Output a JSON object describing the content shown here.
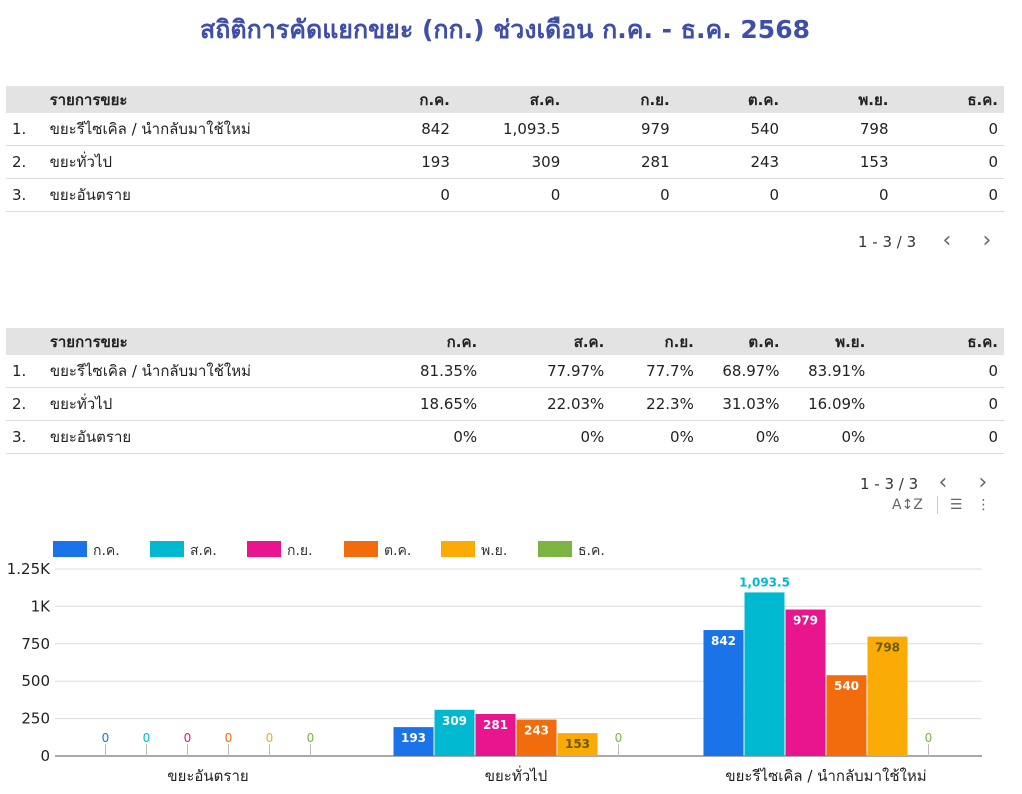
{
  "title": "สถิติการคัดแยกขยะ (กก.) ช่วงเดือน ก.ค. - ธ.ค. 2568",
  "table1": {
    "header": [
      "รายการขยะ",
      "ก.ค.",
      "ส.ค.",
      "ก.ย.",
      "ต.ค.",
      "พ.ย.",
      "ธ.ค."
    ],
    "rows": [
      {
        "idx": "1.",
        "label": "ขยะรีไซเคิล / นำกลับมาใช้ใหม่",
        "values": [
          "842",
          "1,093.5",
          "979",
          "540",
          "798",
          "0"
        ]
      },
      {
        "idx": "2.",
        "label": "ขยะทั่วไป",
        "values": [
          "193",
          "309",
          "281",
          "243",
          "153",
          "0"
        ]
      },
      {
        "idx": "3.",
        "label": "ขยะอันตราย",
        "values": [
          "0",
          "0",
          "0",
          "0",
          "0",
          "0"
        ]
      }
    ],
    "pager": "1 - 3 / 3"
  },
  "table2": {
    "header": [
      "รายการขยะ",
      "ก.ค.",
      "ส.ค.",
      "ก.ย.",
      "ต.ค.",
      "พ.ย.",
      "ธ.ค."
    ],
    "rows": [
      {
        "idx": "1.",
        "label": "ขยะรีไซเคิล / นำกลับมาใช้ใหม่",
        "values": [
          "81.35%",
          "77.97%",
          "77.7%",
          "68.97%",
          "83.91%",
          "0"
        ]
      },
      {
        "idx": "2.",
        "label": "ขยะทั่วไป",
        "values": [
          "18.65%",
          "22.03%",
          "22.3%",
          "31.03%",
          "16.09%",
          "0"
        ]
      },
      {
        "idx": "3.",
        "label": "ขยะอันตราย",
        "values": [
          "0%",
          "0%",
          "0%",
          "0%",
          "0%",
          "0"
        ]
      }
    ],
    "pager": "1 - 3 / 3"
  },
  "icons": {
    "prev": "chevron-left-icon",
    "next": "chevron-right-icon",
    "sort": "sort-az-icon",
    "filter": "filter-icon",
    "more": "more-vert-icon"
  },
  "chart_data": {
    "type": "bar",
    "categories": [
      "ขยะอันตราย",
      "ขยะทั่วไป",
      "ขยะรีไซเคิล / นำกลับมาใช้ใหม่"
    ],
    "series": [
      {
        "name": "ก.ค.",
        "color": "#1a73e8",
        "values": [
          0,
          193,
          842
        ]
      },
      {
        "name": "ส.ค.",
        "color": "#00b8d0",
        "values": [
          0,
          309,
          1093.5
        ]
      },
      {
        "name": "ก.ย.",
        "color": "#e8158e",
        "values": [
          0,
          281,
          979
        ]
      },
      {
        "name": "ต.ค.",
        "color": "#f26b0c",
        "values": [
          0,
          243,
          540
        ]
      },
      {
        "name": "พ.ย.",
        "color": "#fbab05",
        "values": [
          0,
          153,
          798
        ]
      },
      {
        "name": "ธ.ค.",
        "color": "#7cb342",
        "values": [
          0,
          0,
          0
        ]
      }
    ],
    "data_labels": [
      [
        "0",
        "193",
        "842"
      ],
      [
        "0",
        "309",
        "1,093.5"
      ],
      [
        "0",
        "281",
        "979"
      ],
      [
        "0",
        "243",
        "540"
      ],
      [
        "0",
        "153",
        "798"
      ],
      [
        "0",
        "0",
        "0"
      ]
    ],
    "yticks": [
      "0",
      "250",
      "500",
      "750",
      "1K",
      "1.25K"
    ],
    "ylim": [
      0,
      1250
    ],
    "grid": true,
    "legend": "top-left"
  }
}
